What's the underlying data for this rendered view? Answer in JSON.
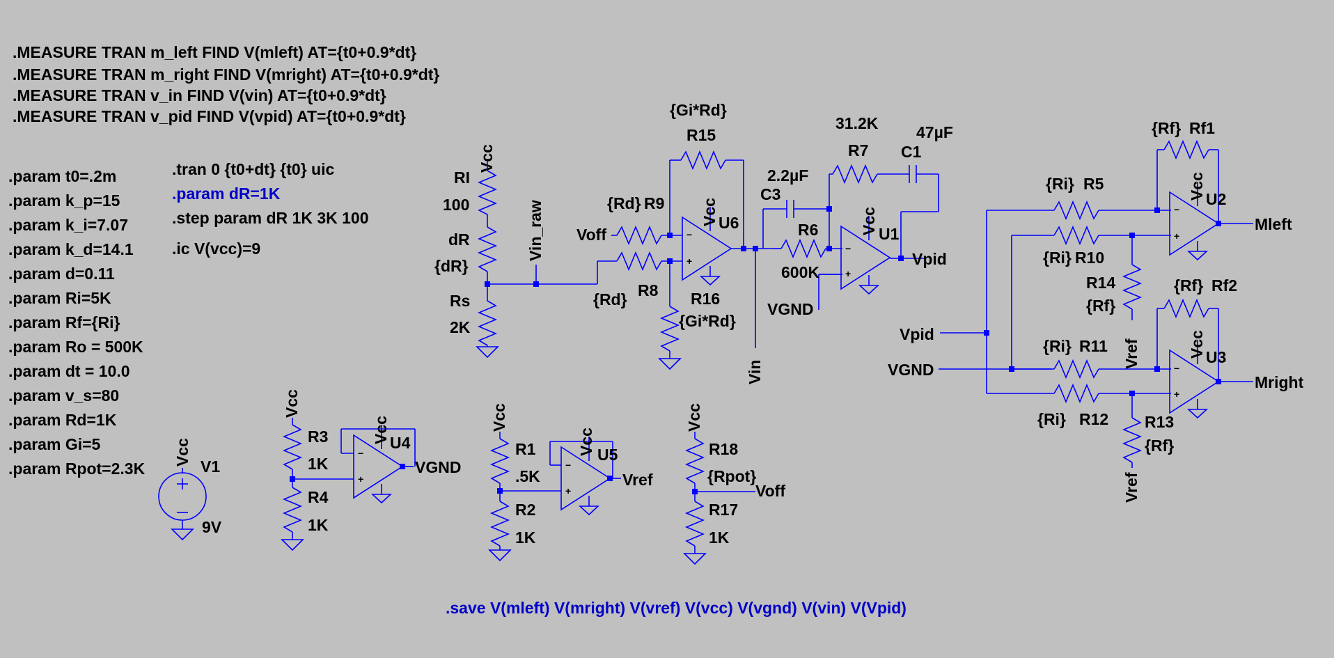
{
  "directives": {
    "measures": [
      ".MEASURE TRAN m_left FIND V(mleft) AT={t0+0.9*dt}",
      ".MEASURE TRAN m_right FIND V(mright) AT={t0+0.9*dt}",
      ".MEASURE TRAN v_in FIND V(vin) AT={t0+0.9*dt}",
      ".MEASURE TRAN v_pid FIND V(vpid) AT={t0+0.9*dt}"
    ],
    "params": [
      ".param t0=.2m",
      ".param k_p=15",
      ".param k_i=7.07",
      ".param k_d=14.1",
      ".param d=0.11",
      ".param Ri=5K",
      ".param Rf={Ri}",
      ".param Ro = 500K",
      ".param dt = 10.0",
      ".param v_s=80",
      ".param Rd=1K",
      ".param Gi=5",
      ".param Rpot=2.3K"
    ],
    "tran": ".tran 0 {t0+dt} {t0} uic",
    "param_dR": ".param dR=1K",
    "step": ".step param dR 1K 3K 100",
    "ic": ".ic V(vcc)=9",
    "save": ".save V(mleft) V(mright) V(vref) V(vcc) V(vgnd) V(vin) V(Vpid)"
  },
  "labels": {
    "vcc": "Vcc",
    "vin_raw": "Vin_raw",
    "vin": "Vin",
    "voff": "Voff",
    "vgnd": "VGND",
    "vpid": "Vpid",
    "vref": "Vref",
    "mleft": "Mleft",
    "mright": "Mright"
  },
  "components": {
    "RI": {
      "name": "RI",
      "value": "100"
    },
    "dR": {
      "name": "dR",
      "value": "{dR}"
    },
    "Rs": {
      "name": "Rs",
      "value": "2K"
    },
    "R9": {
      "name": "R9",
      "value": "{Rd}"
    },
    "R8": {
      "name": "R8",
      "value": "{Rd}"
    },
    "R15": {
      "name": "R15",
      "value": "{Gi*Rd}"
    },
    "R16": {
      "name": "R16",
      "value": "{Gi*Rd}"
    },
    "U6": {
      "name": "U6"
    },
    "C3": {
      "name": "C3",
      "value": "2.2µF"
    },
    "R6": {
      "name": "R6",
      "value": "600K"
    },
    "R7": {
      "name": "R7",
      "value": "31.2K"
    },
    "C1": {
      "name": "C1",
      "value": "47µF"
    },
    "U1": {
      "name": "U1"
    },
    "R5": {
      "name": "R5",
      "value": "{Ri}"
    },
    "R10": {
      "name": "R10",
      "value": "{Ri}"
    },
    "Rf1": {
      "name": "Rf1",
      "value": "{Rf}"
    },
    "R14": {
      "name": "R14",
      "value": "{Rf}"
    },
    "U2": {
      "name": "U2"
    },
    "R11": {
      "name": "R11",
      "value": "{Ri}"
    },
    "R12": {
      "name": "R12",
      "value": "{Ri}"
    },
    "Rf2": {
      "name": "Rf2",
      "value": "{Rf}"
    },
    "R13": {
      "name": "R13",
      "value": "{Rf}"
    },
    "U3": {
      "name": "U3"
    },
    "V1": {
      "name": "V1",
      "value": "9V"
    },
    "R3": {
      "name": "R3",
      "value": "1K"
    },
    "R4": {
      "name": "R4",
      "value": "1K"
    },
    "U4": {
      "name": "U4"
    },
    "R1": {
      "name": "R1",
      "value": ".5K"
    },
    "R2": {
      "name": "R2",
      "value": "1K"
    },
    "U5": {
      "name": "U5"
    },
    "R18": {
      "name": "R18",
      "value": "{Rpot}"
    },
    "R17": {
      "name": "R17",
      "value": "1K"
    }
  },
  "opamp_pins": {
    "minus": "−",
    "plus": "+"
  },
  "colors": {
    "background": "#c0c0c0",
    "wire": "#0000ff",
    "text": "#000000",
    "directive": "#0000c8"
  }
}
